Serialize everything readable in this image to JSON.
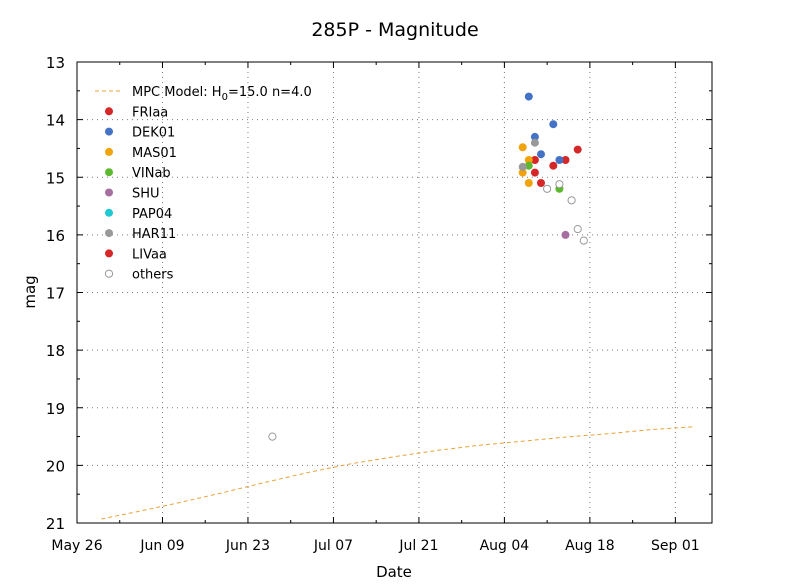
{
  "chart_data": {
    "type": "scatter",
    "title": "285P - Magnitude",
    "xlabel": "Date",
    "ylabel": "mag",
    "x_axis": {
      "type": "date",
      "min": "2024-05-26",
      "max": "2024-09-07",
      "ticks": [
        "2024-05-26",
        "2024-06-09",
        "2024-06-23",
        "2024-07-07",
        "2024-07-21",
        "2024-08-04",
        "2024-08-18",
        "2024-09-01"
      ],
      "tick_labels": [
        "May 26",
        "Jun 09",
        "Jun 23",
        "Jul 07",
        "Jul 21",
        "Aug 04",
        "Aug 18",
        "Sep 01"
      ]
    },
    "y_axis": {
      "min": 13,
      "max": 21,
      "inverted": true,
      "ticks": [
        13,
        14,
        15,
        16,
        17,
        18,
        19,
        20,
        21
      ],
      "tick_labels": [
        "13",
        "14",
        "15",
        "16",
        "17",
        "18",
        "19",
        "20",
        "21"
      ]
    },
    "grid": true,
    "legend_position": "top-left",
    "model": {
      "name": "MPC Model: H0=15.0 n=4.0",
      "name_parts": {
        "prefix": "MPC Model: H",
        "sub": "0",
        "suffix": "=15.0 n=4.0"
      },
      "color": "#e8a33a",
      "points": [
        [
          "2024-05-30",
          20.93
        ],
        [
          "2024-06-05",
          20.8
        ],
        [
          "2024-06-12",
          20.64
        ],
        [
          "2024-06-19",
          20.47
        ],
        [
          "2024-06-26",
          20.29
        ],
        [
          "2024-07-03",
          20.12
        ],
        [
          "2024-07-10",
          19.97
        ],
        [
          "2024-07-17",
          19.85
        ],
        [
          "2024-07-24",
          19.74
        ],
        [
          "2024-07-31",
          19.65
        ],
        [
          "2024-08-07",
          19.58
        ],
        [
          "2024-08-14",
          19.51
        ],
        [
          "2024-08-21",
          19.45
        ],
        [
          "2024-08-28",
          19.38
        ],
        [
          "2024-09-04",
          19.33
        ]
      ]
    },
    "series": [
      {
        "name": "FRIaa",
        "color": "#d62728",
        "filled": true,
        "points": [
          [
            "2024-08-09",
            14.7
          ],
          [
            "2024-08-09",
            14.92
          ],
          [
            "2024-08-10",
            15.1
          ],
          [
            "2024-08-12",
            14.8
          ],
          [
            "2024-08-14",
            14.7
          ],
          [
            "2024-08-16",
            14.52
          ]
        ]
      },
      {
        "name": "DEK01",
        "color": "#4472c4",
        "filled": true,
        "points": [
          [
            "2024-08-08",
            13.6
          ],
          [
            "2024-08-09",
            14.3
          ],
          [
            "2024-08-10",
            14.6
          ],
          [
            "2024-08-12",
            14.08
          ],
          [
            "2024-08-13",
            14.7
          ]
        ]
      },
      {
        "name": "MAS01",
        "color": "#f0a30a",
        "filled": true,
        "points": [
          [
            "2024-08-07",
            14.48
          ],
          [
            "2024-08-07",
            14.92
          ],
          [
            "2024-08-08",
            14.7
          ],
          [
            "2024-08-08",
            15.1
          ]
        ]
      },
      {
        "name": "VINab",
        "color": "#5cb82e",
        "filled": true,
        "points": [
          [
            "2024-08-08",
            14.8
          ],
          [
            "2024-08-13",
            15.2
          ]
        ]
      },
      {
        "name": "SHU",
        "color": "#a66fa0",
        "filled": true,
        "points": [
          [
            "2024-08-14",
            16.0
          ]
        ]
      },
      {
        "name": "PAP04",
        "color": "#1fc9d1",
        "filled": true,
        "points": []
      },
      {
        "name": "HAR11",
        "color": "#999999",
        "filled": true,
        "points": [
          [
            "2024-08-07",
            14.82
          ],
          [
            "2024-08-09",
            14.4
          ]
        ]
      },
      {
        "name": "LIVaa",
        "color": "#d62728",
        "filled": true,
        "points": []
      },
      {
        "name": "others",
        "color": "#999999",
        "filled": false,
        "points": [
          [
            "2024-06-27",
            19.5
          ],
          [
            "2024-08-11",
            15.2
          ],
          [
            "2024-08-13",
            15.12
          ],
          [
            "2024-08-15",
            15.4
          ],
          [
            "2024-08-16",
            15.9
          ],
          [
            "2024-08-17",
            16.1
          ]
        ]
      }
    ]
  }
}
